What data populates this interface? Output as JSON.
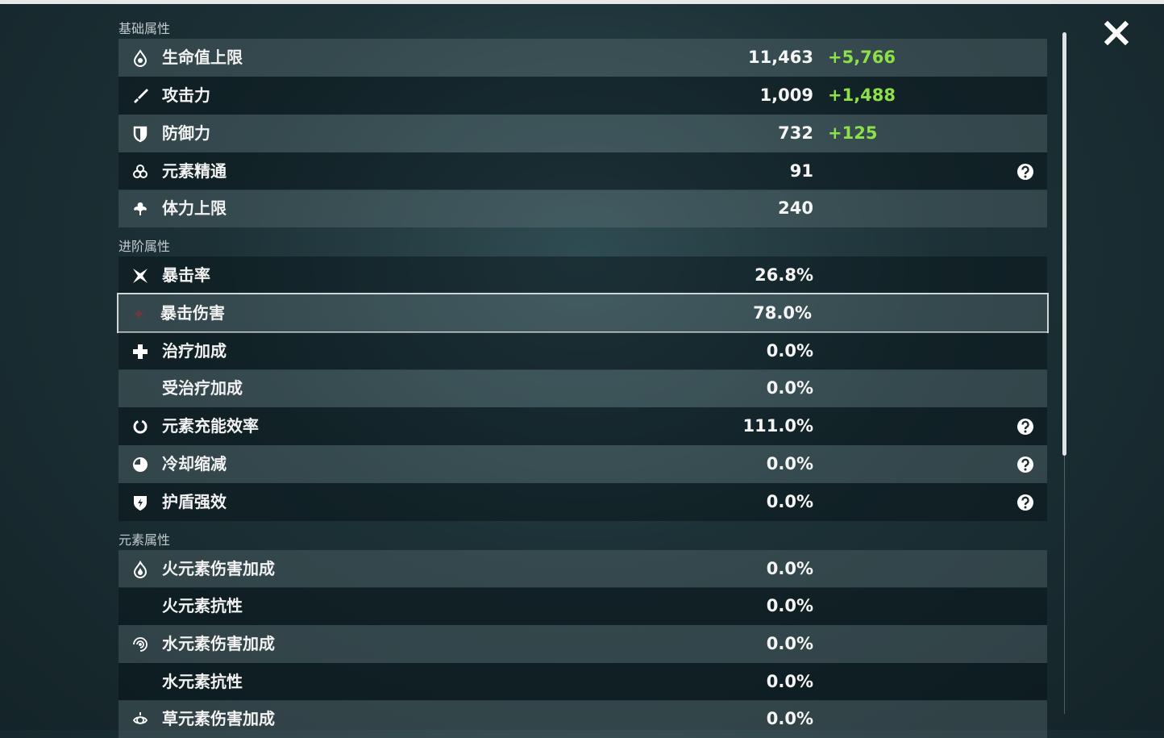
{
  "sections": [
    {
      "title": "基础属性",
      "rows": [
        {
          "label": "生命值上限",
          "value": "11,463",
          "bonus": "+5,766"
        },
        {
          "label": "攻击力",
          "value": "1,009",
          "bonus": "+1,488"
        },
        {
          "label": "防御力",
          "value": "732",
          "bonus": "+125"
        },
        {
          "label": "元素精通",
          "value": "91"
        },
        {
          "label": "体力上限",
          "value": "240"
        }
      ]
    },
    {
      "title": "进阶属性",
      "rows": [
        {
          "label": "暴击率",
          "value": "26.8%"
        },
        {
          "label": "暴击伤害",
          "value": "78.0%"
        },
        {
          "label": "治疗加成",
          "value": "0.0%"
        },
        {
          "label": "受治疗加成",
          "value": "0.0%"
        },
        {
          "label": "元素充能效率",
          "value": "111.0%"
        },
        {
          "label": "冷却缩减",
          "value": "0.0%"
        },
        {
          "label": "护盾强效",
          "value": "0.0%"
        }
      ]
    },
    {
      "title": "元素属性",
      "rows": [
        {
          "label": "火元素伤害加成",
          "value": "0.0%"
        },
        {
          "label": "火元素抗性",
          "value": "0.0%"
        },
        {
          "label": "水元素伤害加成",
          "value": "0.0%"
        },
        {
          "label": "水元素抗性",
          "value": "0.0%"
        },
        {
          "label": "草元素伤害加成",
          "value": "0.0%"
        }
      ]
    }
  ]
}
